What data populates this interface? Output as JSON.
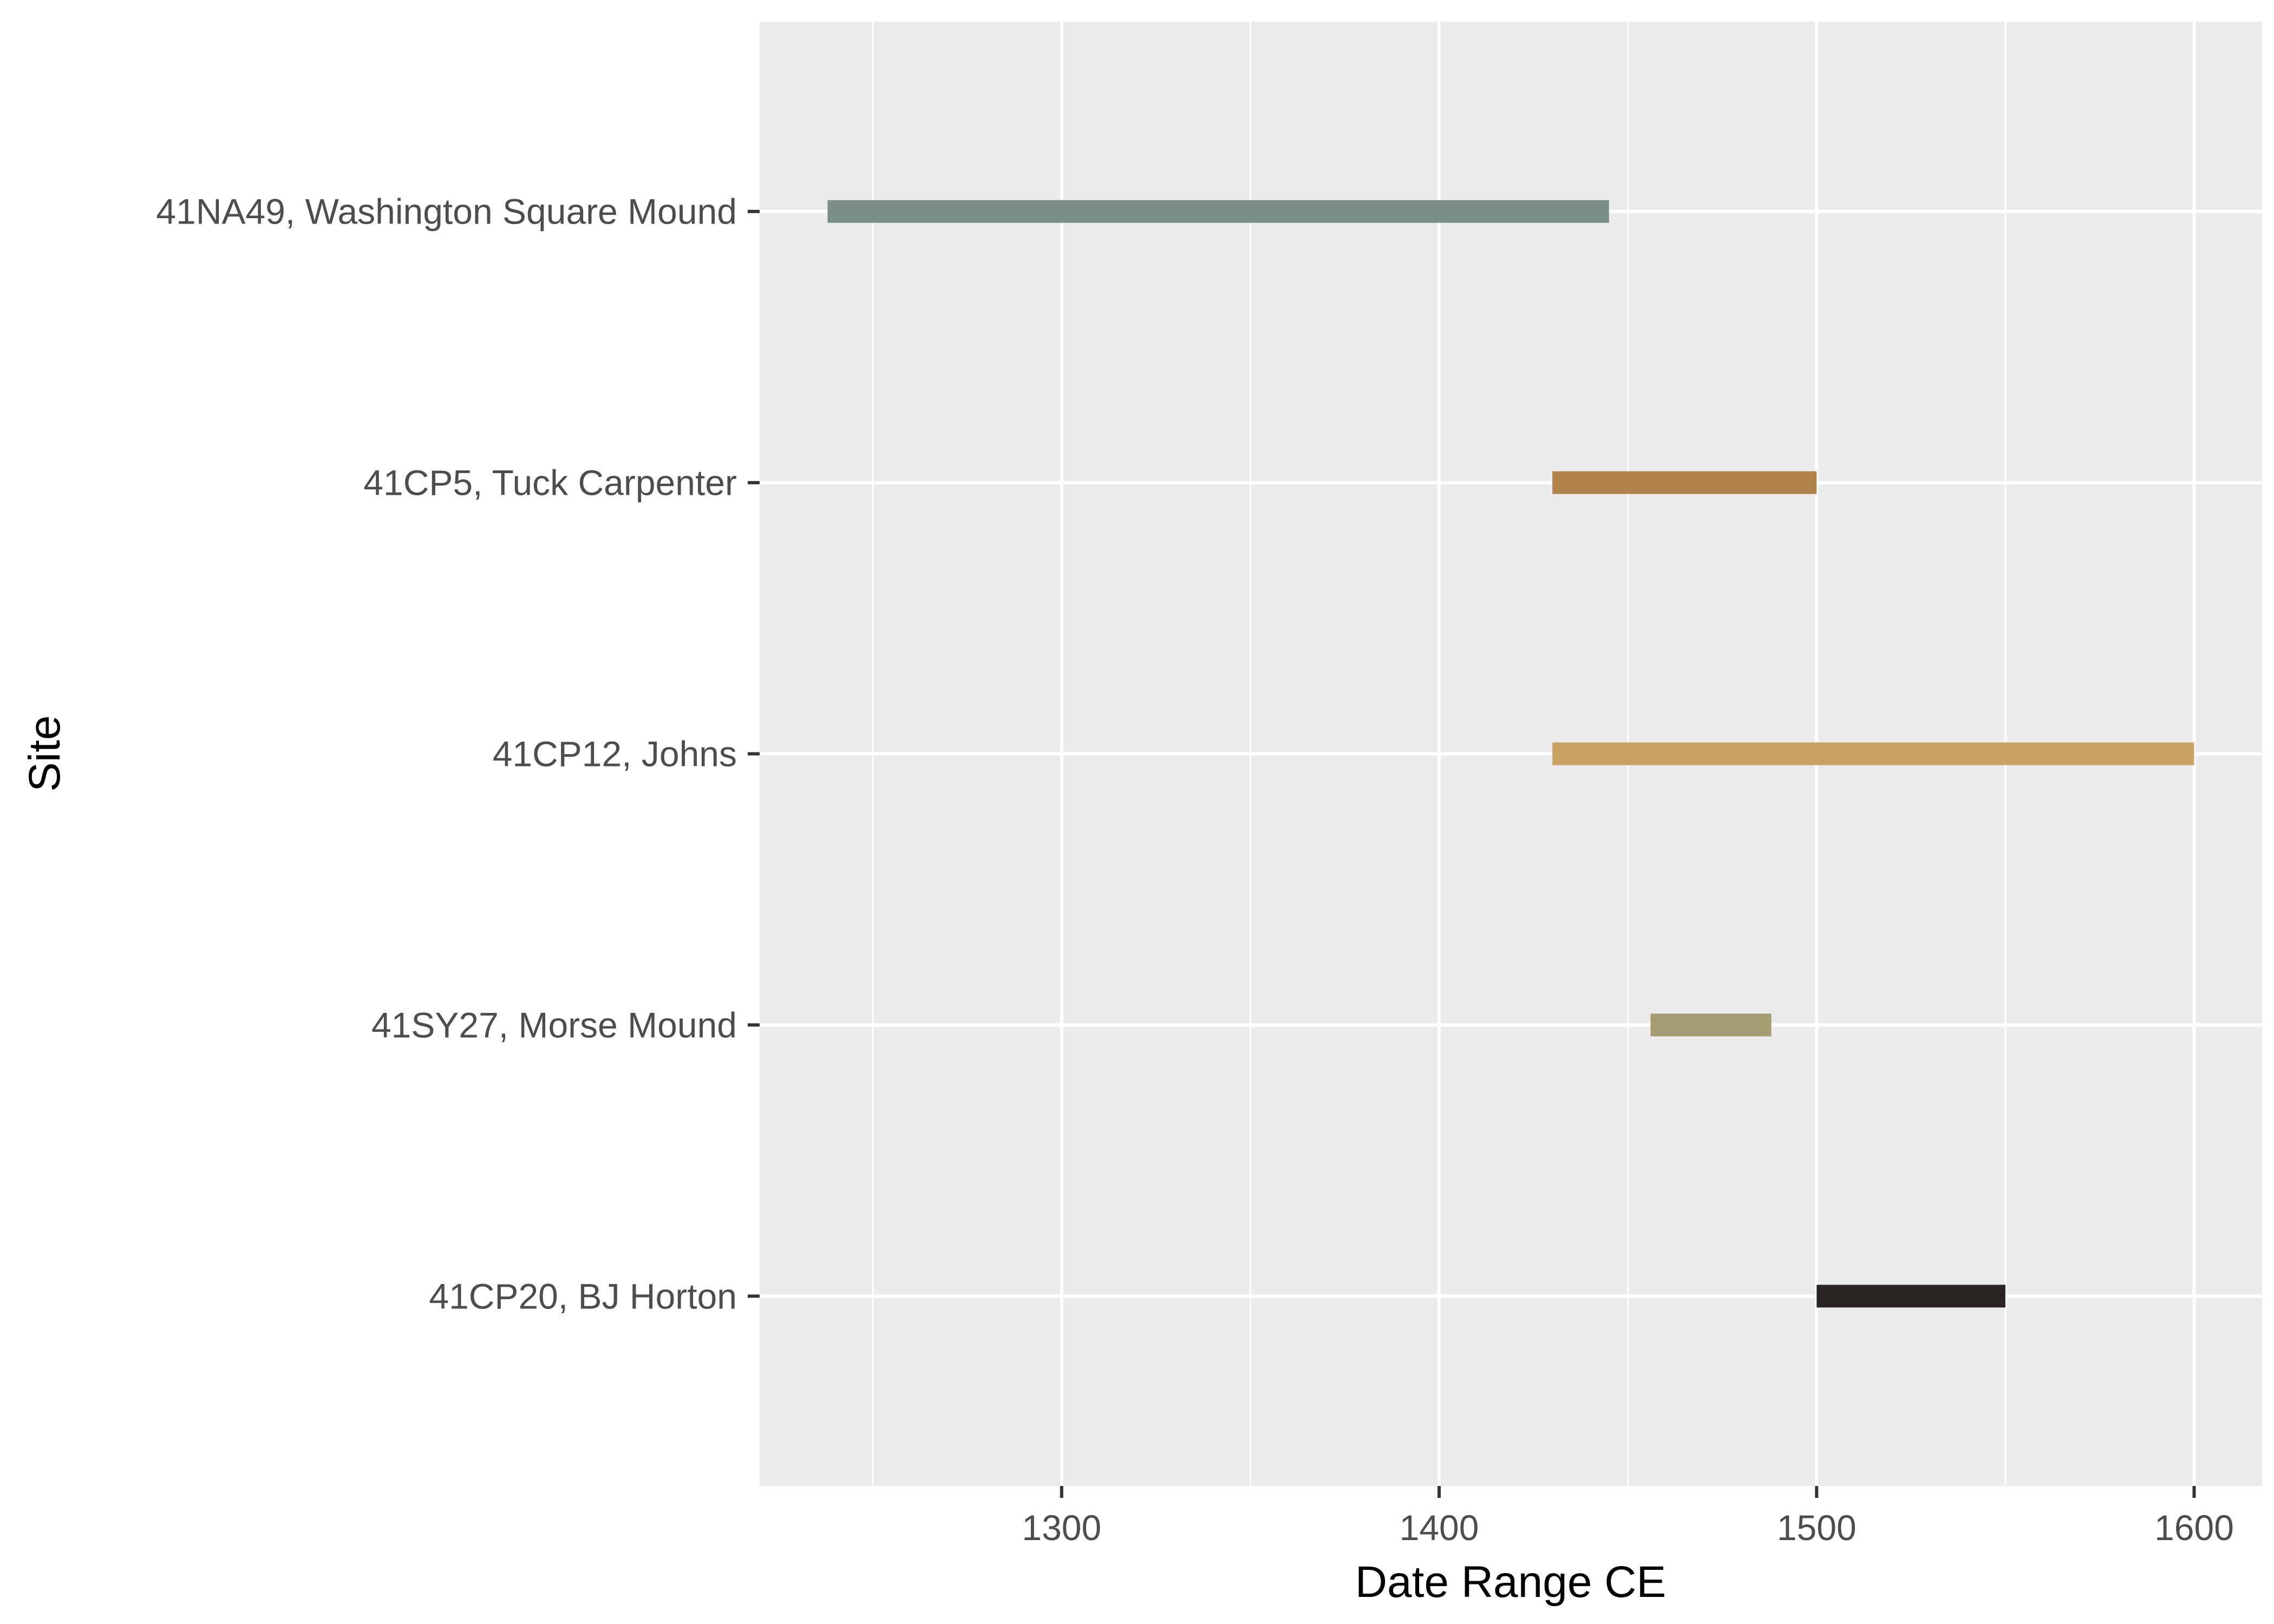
{
  "chart_data": {
    "type": "range-bar",
    "title": "",
    "xlabel": "Date Range CE",
    "ylabel": "Site",
    "xlim": [
      1220,
      1618
    ],
    "x_ticks": [
      1300,
      1400,
      1500,
      1600
    ],
    "x_minor_ticks": [
      1250,
      1350,
      1450,
      1550
    ],
    "grid": true,
    "legend": "none",
    "background_color": "#ebebeb",
    "grid_color": "#ffffff",
    "sites": [
      {
        "label": "41NA49, Washington Square Mound",
        "start": 1238,
        "end": 1445,
        "color": "#7a8d86"
      },
      {
        "label": "41CP5, Tuck Carpenter",
        "start": 1430,
        "end": 1500,
        "color": "#b0834b"
      },
      {
        "label": "41CP12, Johns",
        "start": 1430,
        "end": 1600,
        "color": "#c9a265"
      },
      {
        "label": "41SY27, Morse Mound",
        "start": 1456,
        "end": 1488,
        "color": "#a69d72"
      },
      {
        "label": "41CP20, BJ Horton",
        "start": 1500,
        "end": 1550,
        "color": "#2a2522"
      }
    ]
  }
}
